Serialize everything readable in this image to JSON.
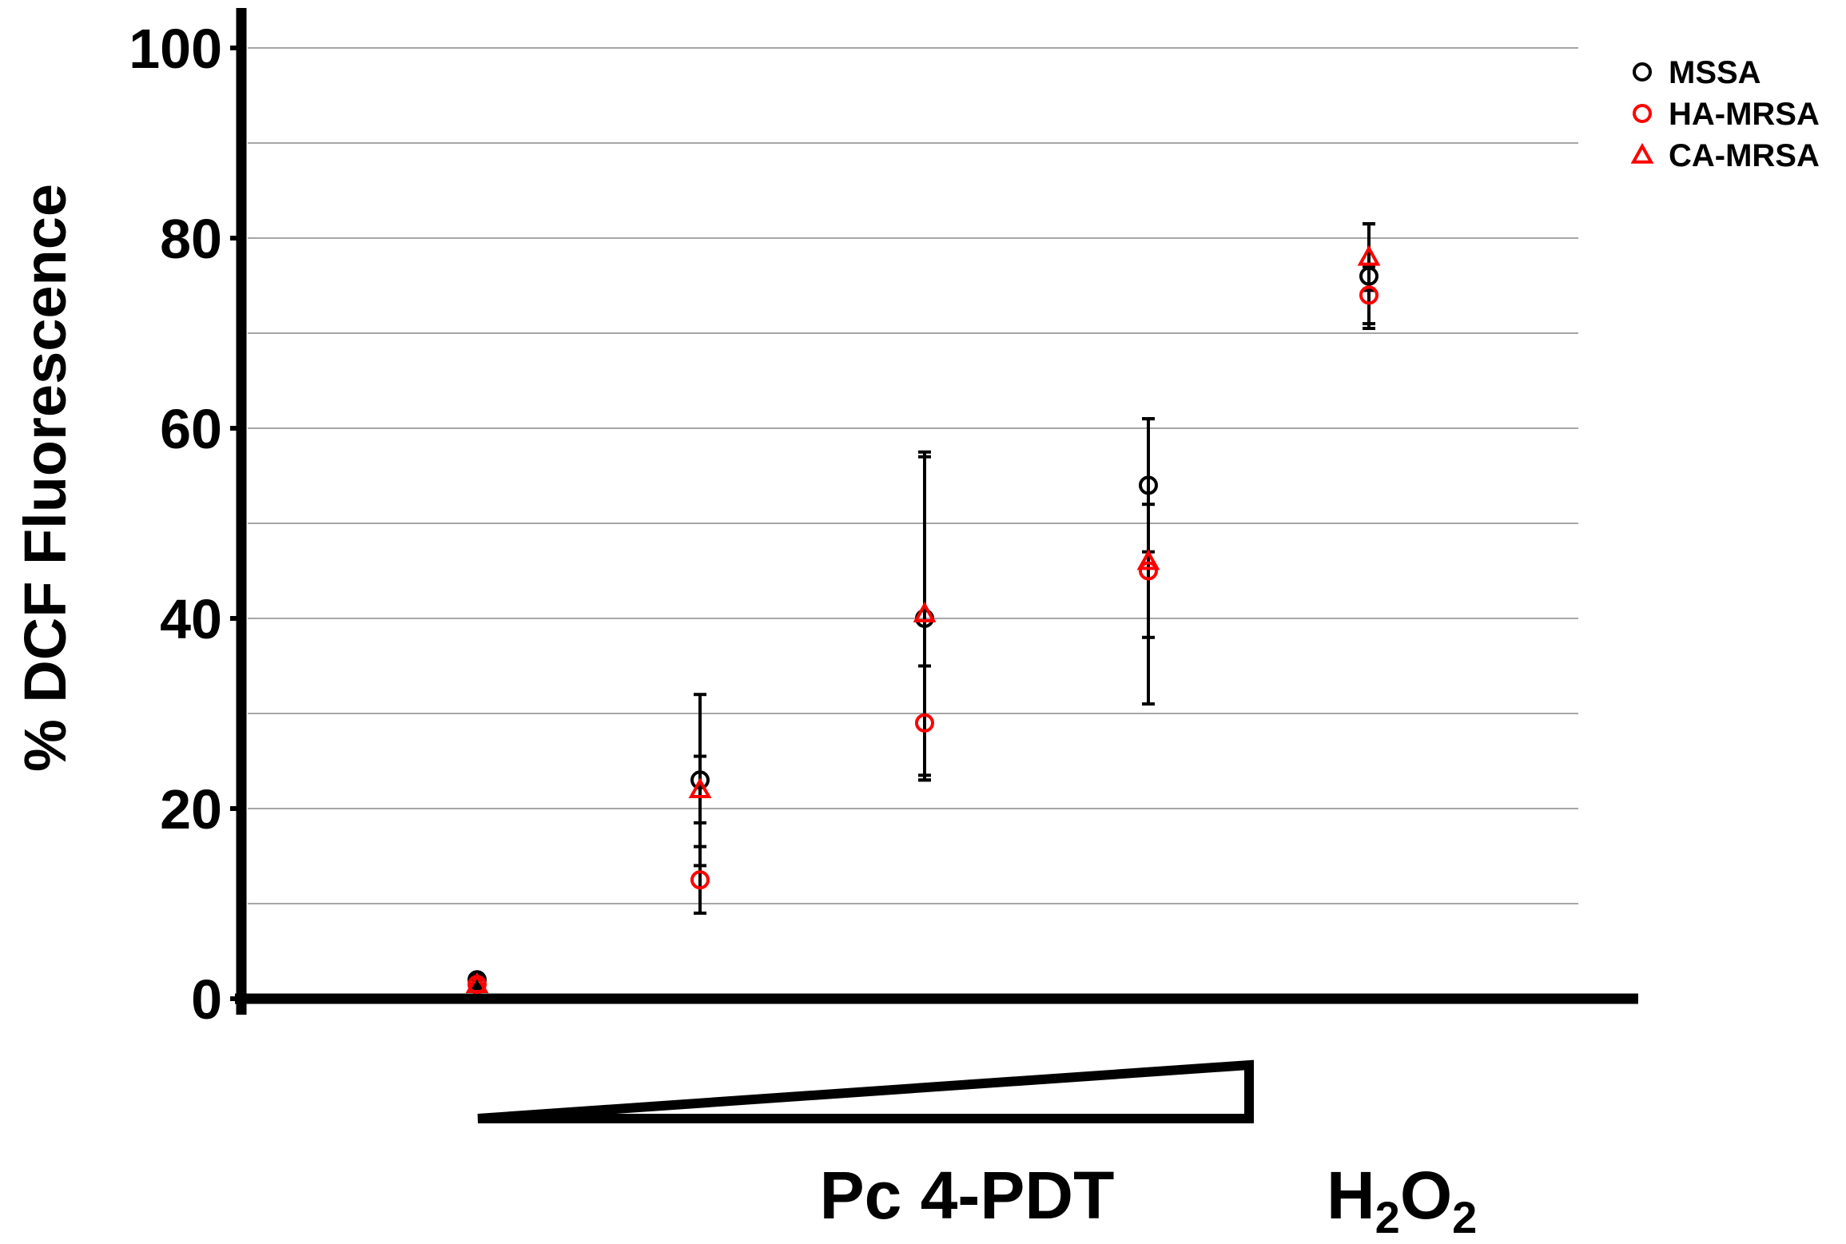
{
  "chart_data": {
    "type": "scatter",
    "title": "",
    "xlabel": "",
    "ylabel": "% DCF Fluorescence",
    "ylim": [
      0,
      100
    ],
    "yticks": [
      0,
      20,
      40,
      60,
      80,
      100
    ],
    "grid": true,
    "legend_position": "top-right",
    "x_positions": [
      1,
      2,
      3,
      4,
      5
    ],
    "category_labels": {
      "gradient": "Pc 4-PDT",
      "h2o2_main": "H",
      "h2o2_sub1": "2",
      "h2o2_mid": "O",
      "h2o2_sub2": "2"
    },
    "series": [
      {
        "name": "MSSA",
        "marker": "circle",
        "color": "#000000",
        "values": [
          2,
          23,
          40,
          54,
          76
        ],
        "errors": [
          0.5,
          9,
          17,
          7,
          5.5
        ]
      },
      {
        "name": "HA-MRSA",
        "marker": "circle",
        "color": "#ff0000",
        "values": [
          1.5,
          12.5,
          29,
          45,
          74
        ],
        "errors": [
          0.5,
          3.5,
          6,
          7,
          3
        ]
      },
      {
        "name": "CA-MRSA",
        "marker": "triangle",
        "color": "#ff0000",
        "values": [
          1.5,
          22,
          40.5,
          46,
          78
        ],
        "errors": [
          0.5,
          3.5,
          17,
          15,
          3.5
        ]
      }
    ]
  }
}
